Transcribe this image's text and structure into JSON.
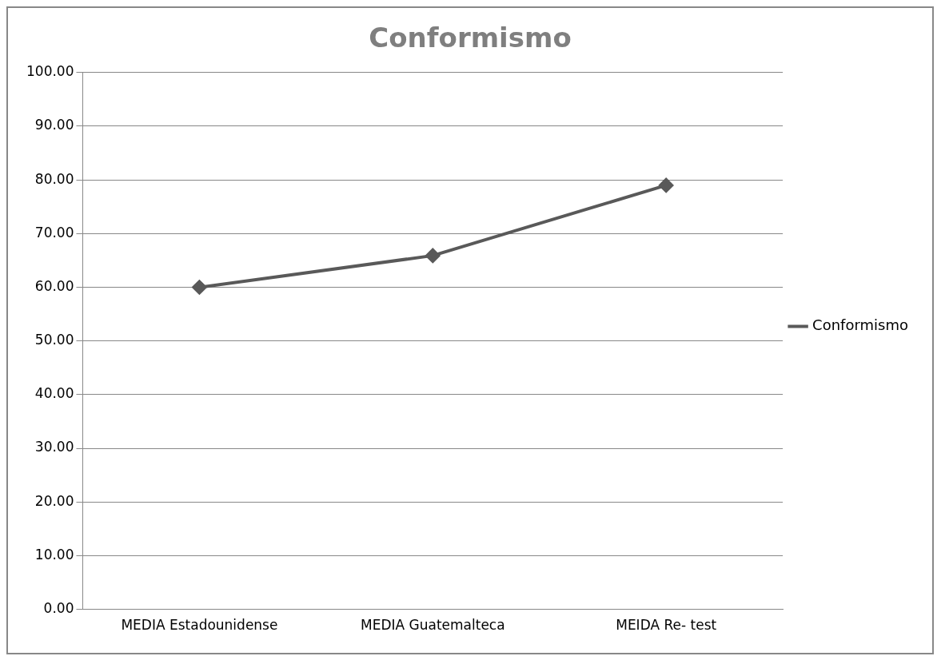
{
  "chart_data": {
    "type": "line",
    "title": "Conformismo",
    "categories": [
      "MEDIA Estadounidense",
      "MEDIA Guatemalteca",
      "MEIDA Re- test"
    ],
    "series": [
      {
        "name": "Conformismo",
        "color": "#595959",
        "values": [
          60,
          65.9,
          79
        ]
      }
    ],
    "ylim": [
      0,
      100
    ],
    "yticks": [
      {
        "value": 0,
        "label": "0.00"
      },
      {
        "value": 10,
        "label": "10.00"
      },
      {
        "value": 20,
        "label": "20.00"
      },
      {
        "value": 30,
        "label": "30.00"
      },
      {
        "value": 40,
        "label": "40.00"
      },
      {
        "value": 50,
        "label": "50.00"
      },
      {
        "value": 60,
        "label": "60.00"
      },
      {
        "value": 70,
        "label": "70.00"
      },
      {
        "value": 80,
        "label": "80.00"
      },
      {
        "value": 90,
        "label": "90.00"
      },
      {
        "value": 100,
        "label": "100.00"
      }
    ],
    "grid": "y",
    "legend": "right",
    "marker": "diamond",
    "line_style": "solid"
  }
}
